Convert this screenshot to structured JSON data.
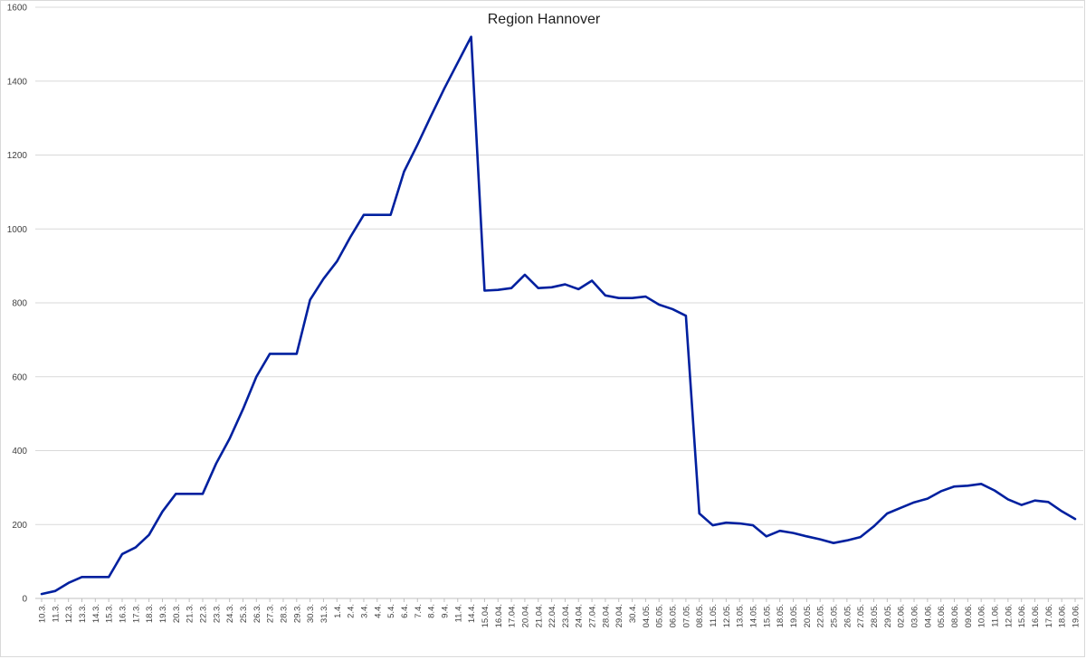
{
  "chart_data": {
    "type": "line",
    "title": "Region Hannover",
    "xlabel": "",
    "ylabel": "",
    "ylim": [
      0,
      1600
    ],
    "yticks": [
      0,
      200,
      400,
      600,
      800,
      1000,
      1200,
      1400,
      1600
    ],
    "grid": true,
    "legend": "none",
    "categories": [
      "10.3.",
      "11.3.",
      "12.3.",
      "13.3.",
      "14.3.",
      "15.3.",
      "16.3.",
      "17.3.",
      "18.3.",
      "19.3.",
      "20.3.",
      "21.3.",
      "22.3.",
      "23.3.",
      "24.3.",
      "25.3.",
      "26.3.",
      "27.3.",
      "28.3.",
      "29.3.",
      "30.3.",
      "31.3.",
      "1.4.",
      "2.4.",
      "3.4.",
      "4.4.",
      "5.4.",
      "6.4.",
      "7.4.",
      "8.4.",
      "9.4.",
      "11.4.",
      "14.4.",
      "15.04.",
      "16.04.",
      "17.04.",
      "20.04.",
      "21.04.",
      "22.04.",
      "23.04.",
      "24.04.",
      "27.04.",
      "28.04.",
      "29.04.",
      "30.4.",
      "04.05.",
      "05.05.",
      "06.05.",
      "07.05.",
      "08.05.",
      "11.05.",
      "12.05.",
      "13.05.",
      "14.05.",
      "15.05.",
      "18.05.",
      "19.05.",
      "20.05.",
      "22.05.",
      "25.05.",
      "26.05.",
      "27.05.",
      "28.05.",
      "29.05.",
      "02.06.",
      "03.06.",
      "04.06.",
      "05.06.",
      "08.06.",
      "09.06.",
      "10.06.",
      "11.06.",
      "12.06.",
      "15.06.",
      "16.06.",
      "17.06.",
      "18.06.",
      "19.06."
    ],
    "series": [
      {
        "color": "#00209f",
        "values": [
          12,
          20,
          42,
          58,
          58,
          58,
          120,
          138,
          172,
          235,
          283,
          283,
          283,
          365,
          432,
          512,
          600,
          662,
          662,
          662,
          808,
          865,
          912,
          978,
          1038,
          1038,
          1038,
          1155,
          1228,
          1305,
          1380,
          1450,
          1520,
          833,
          835,
          840,
          876,
          840,
          842,
          850,
          837,
          860,
          820,
          813,
          813,
          817,
          795,
          783,
          765,
          230,
          198,
          205,
          203,
          198,
          168,
          183,
          177,
          168,
          160,
          150,
          157,
          166,
          195,
          230,
          245,
          260,
          270,
          290,
          303,
          305,
          310,
          292,
          268,
          253,
          265,
          261,
          236,
          215
        ]
      }
    ]
  }
}
